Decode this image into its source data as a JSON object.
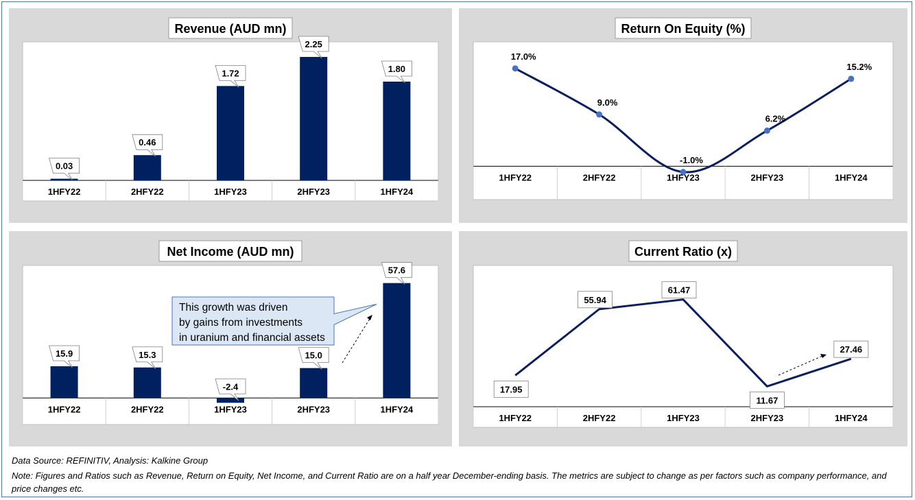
{
  "colors": {
    "bar": "#002060",
    "line": "#0a1f5c",
    "marker": "#4472c4",
    "panel_bg": "#d9d9d9",
    "plot_bg": "#ffffff"
  },
  "charts": [
    {
      "id": "revenue",
      "type": "bar",
      "title": "Revenue (AUD mn)",
      "categories": [
        "1HFY22",
        "2HFY22",
        "1HFY23",
        "2HFY23",
        "1HFY24"
      ],
      "values": [
        0.03,
        0.46,
        1.72,
        2.25,
        1.8
      ],
      "labels": [
        "0.03",
        "0.46",
        "1.72",
        "2.25",
        "1.80"
      ],
      "ylim": [
        0,
        2.4
      ]
    },
    {
      "id": "roe",
      "type": "line",
      "title": "Return On Equity (%)",
      "categories": [
        "1HFY22",
        "2HFY22",
        "1HFY23",
        "2HFY23",
        "1HFY24"
      ],
      "values": [
        17.0,
        9.0,
        -1.0,
        6.2,
        15.2
      ],
      "labels": [
        "17.0%",
        "9.0%",
        "-1.0%",
        "6.2%",
        "15.2%"
      ],
      "ylim": [
        -1.5,
        19
      ]
    },
    {
      "id": "netincome",
      "type": "bar",
      "title": "Net Income (AUD mn)",
      "categories": [
        "1HFY22",
        "2HFY22",
        "1HFY23",
        "2HFY23",
        "1HFY24"
      ],
      "values": [
        15.9,
        15.3,
        -2.4,
        15.0,
        57.6
      ],
      "labels": [
        "15.9",
        "15.3",
        "-2.4",
        "15.0",
        "57.6"
      ],
      "ylim": [
        -3,
        63
      ],
      "annotation": "This growth was driven by gains from investments in uranium and financial assets"
    },
    {
      "id": "currentratio",
      "type": "line",
      "title": "Current Ratio (x)",
      "categories": [
        "1HFY22",
        "2HFY22",
        "1HFY23",
        "2HFY23",
        "1HFY24"
      ],
      "values": [
        17.95,
        55.94,
        61.47,
        11.67,
        27.46
      ],
      "labels": [
        "17.95",
        "55.94",
        "61.47",
        "11.67",
        "27.46"
      ],
      "ylim": [
        0,
        70
      ]
    }
  ],
  "footer": {
    "source": "Data Source: REFINITIV, Analysis: Kalkine Group",
    "note": "Note: Figures and Ratios such as Revenue, Return on Equity, Net Income, and Current Ratio are on a half year December-ending basis. The metrics are subject to change as per factors such as company performance, and price changes etc."
  }
}
